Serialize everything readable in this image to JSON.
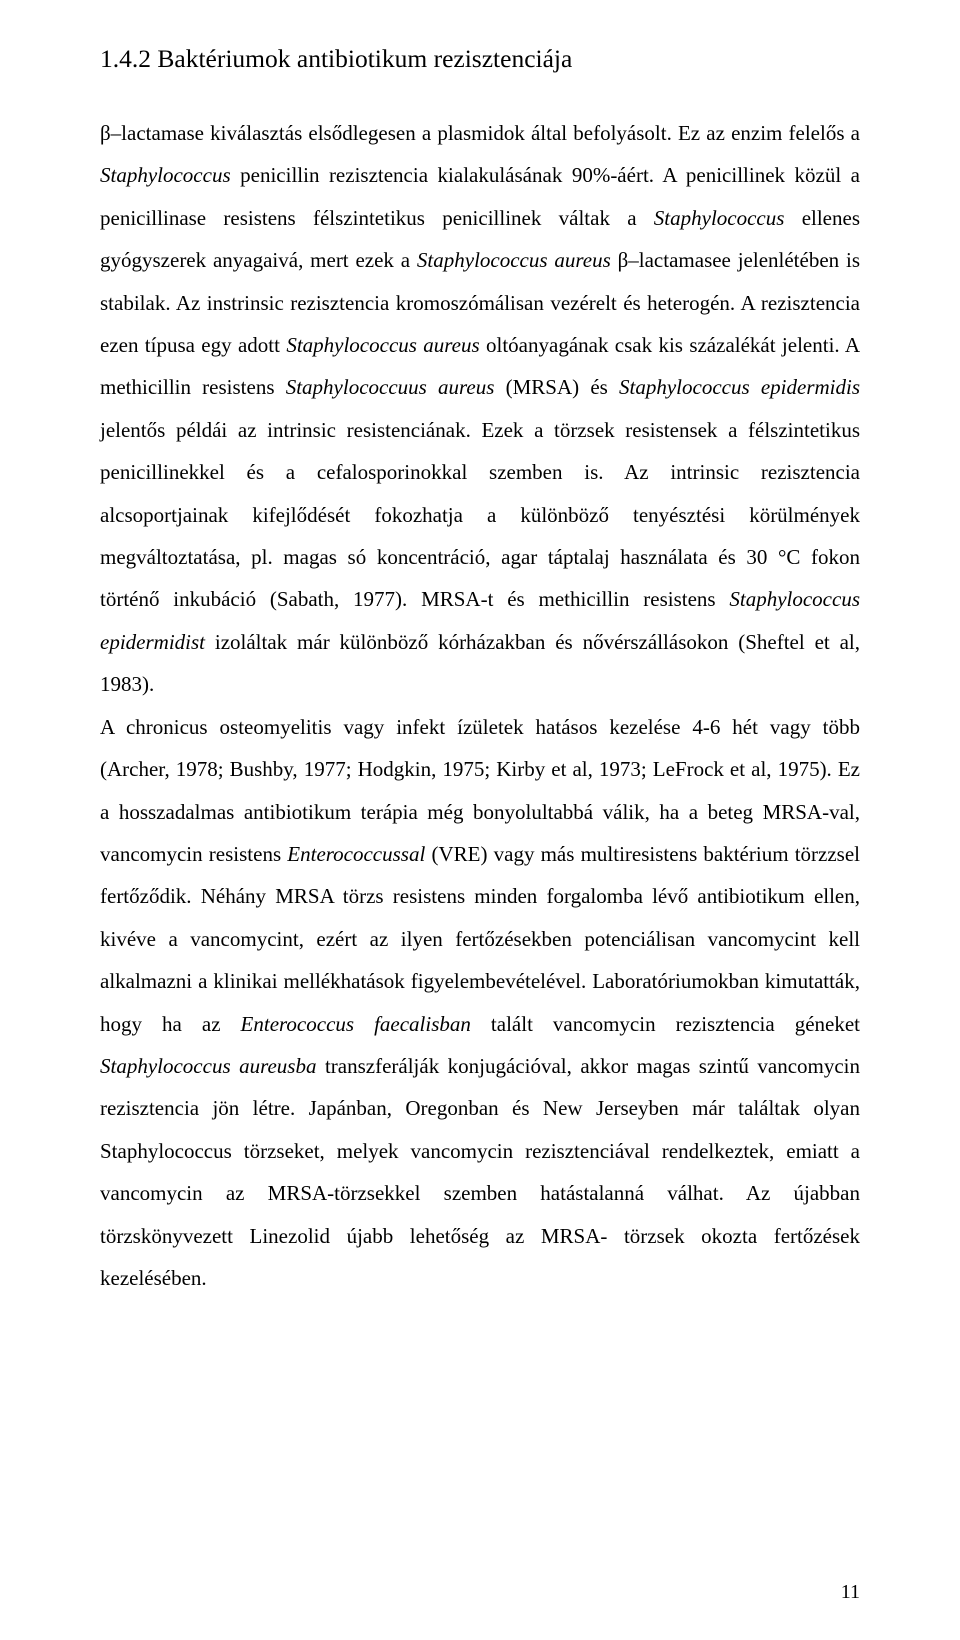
{
  "heading": "1.4.2 Baktériumok antibiotikum rezisztenciája",
  "para": {
    "p0": "β–lactamase kiválasztás elsődlegesen a plasmidok által befolyásolt. Ez az enzim felelős a ",
    "p1": "Staphylococcus",
    "p2": " penicillin rezisztencia kialakulásának 90%-áért. A penicillinek közül a penicillinase resistens félszintetikus penicillinek váltak a ",
    "p3": "Staphylococcus",
    "p4": " ellenes gyógyszerek anyagaivá, mert ezek a ",
    "p5": "Staphylococcus aureus",
    "p6": " β–lactamasee jelenlétében is stabilak. Az instrinsic rezisztencia kromoszómálisan vezérelt és heterogén. A rezisztencia ezen típusa egy adott ",
    "p7": "Staphylococcus aureus",
    "p8": " oltóanyagának csak kis százalékát jelenti. A methicillin resistens ",
    "p9": "Staphylococcuus aureus",
    "p10": " (MRSA) és ",
    "p11": "Staphylococcus epidermidis",
    "p12": " jelentős példái az intrinsic resistenciának. Ezek a törzsek resistensek a félszintetikus penicillinekkel és a cefalosporinokkal szemben is. Az intrinsic rezisztencia alcsoportjainak kifejlődését fokozhatja a különböző tenyésztési körülmények megváltoztatása, pl. magas só koncentráció, agar táptalaj használata és 30 °C fokon történő inkubáció (Sabath, 1977). MRSA-t és methicillin resistens ",
    "p13": "Staphylococcus epidermidist",
    "p14": " izoláltak már különböző kórházakban és nővérszállásokon (Sheftel et al, 1983).",
    "q0": "A chronicus osteomyelitis vagy infekt ízületek hatásos kezelése 4-6 hét vagy több (Archer, 1978; Bushby, 1977; Hodgkin, 1975; Kirby et al, 1973; LeFrock et al, 1975). Ez a hosszadalmas antibiotikum terápia még bonyolultabbá válik, ha a beteg MRSA-val, vancomycin resistens ",
    "q1": "Enterococcussal",
    "q2": " (VRE) vagy más multiresistens baktérium törzzsel fertőződik. Néhány MRSA törzs resistens minden forgalomba lévő antibiotikum ellen, kivéve a vancomycint, ezért az ilyen fertőzésekben potenciálisan vancomycint kell alkalmazni a klinikai mellékhatások figyelembevételével. Laboratóriumokban kimutatták, hogy ha az ",
    "q3": "Enterococcus faecalisban",
    "q4": " talált vancomycin rezisztencia géneket ",
    "q5": "Staphylococcus aureusba",
    "q6": " transzferálják konjugációval, akkor magas szintű vancomycin rezisztencia jön létre. Japánban, Oregonban és New Jerseyben már találtak olyan Staphylococcus törzseket, melyek vancomycin rezisztenciával rendelkeztek, emiatt a vancomycin az MRSA-törzsekkel szemben hatástalanná válhat. Az újabban törzskönyvezett Linezolid újabb lehetőség az MRSA- törzsek okozta fertőzések kezelésében."
  },
  "pageNumber": "11"
}
